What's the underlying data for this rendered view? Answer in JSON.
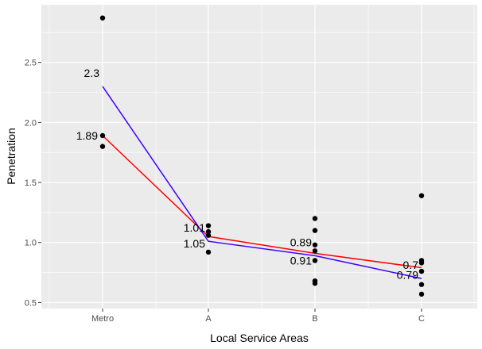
{
  "chart_data": {
    "type": "scatter",
    "title": "",
    "xlabel": "Local Service Areas",
    "ylabel": "Penetration",
    "categories": [
      "Metro",
      "A",
      "B",
      "C"
    ],
    "y_ticks": [
      "0.5",
      "1.0",
      "1.5",
      "2.0",
      "2.5"
    ],
    "ylim": [
      0.45,
      2.98
    ],
    "grid": true,
    "legend": "none",
    "points": [
      {
        "x": "Metro",
        "y": 2.87
      },
      {
        "x": "Metro",
        "y": 1.89
      },
      {
        "x": "Metro",
        "y": 1.8
      },
      {
        "x": "A",
        "y": 1.14
      },
      {
        "x": "A",
        "y": 1.09
      },
      {
        "x": "A",
        "y": 1.06
      },
      {
        "x": "A",
        "y": 0.92
      },
      {
        "x": "B",
        "y": 1.2
      },
      {
        "x": "B",
        "y": 1.1
      },
      {
        "x": "B",
        "y": 0.98
      },
      {
        "x": "B",
        "y": 0.93
      },
      {
        "x": "B",
        "y": 0.85
      },
      {
        "x": "B",
        "y": 0.68
      },
      {
        "x": "B",
        "y": 0.66
      },
      {
        "x": "C",
        "y": 1.39
      },
      {
        "x": "C",
        "y": 0.85
      },
      {
        "x": "C",
        "y": 0.83
      },
      {
        "x": "C",
        "y": 0.76
      },
      {
        "x": "C",
        "y": 0.65
      },
      {
        "x": "C",
        "y": 0.57
      }
    ],
    "series": [
      {
        "color": "#ff0000",
        "values": [
          1.89,
          1.05,
          0.91,
          0.79
        ]
      },
      {
        "color": "#3f00ff",
        "values": [
          2.3,
          1.01,
          0.89,
          0.7
        ]
      }
    ],
    "labels": [
      {
        "x": "Metro",
        "y": 2.3,
        "text": "2.3",
        "side": "above"
      },
      {
        "x": "Metro",
        "y": 1.89,
        "text": "1.89",
        "side": "left"
      },
      {
        "x": "A",
        "y": 1.01,
        "text": "1.01",
        "side": "above"
      },
      {
        "x": "A",
        "y": 1.05,
        "text": "1.05",
        "side": "below"
      },
      {
        "x": "B",
        "y": 0.89,
        "text": "0.89",
        "side": "above"
      },
      {
        "x": "B",
        "y": 0.91,
        "text": "0.91",
        "side": "below"
      },
      {
        "x": "C",
        "y": 0.7,
        "text": "0.7",
        "side": "above"
      },
      {
        "x": "C",
        "y": 0.79,
        "text": "0.79",
        "side": "below"
      }
    ],
    "colors": {
      "panel": "#ebebeb",
      "grid": "#ffffff",
      "point": "#000000"
    }
  }
}
